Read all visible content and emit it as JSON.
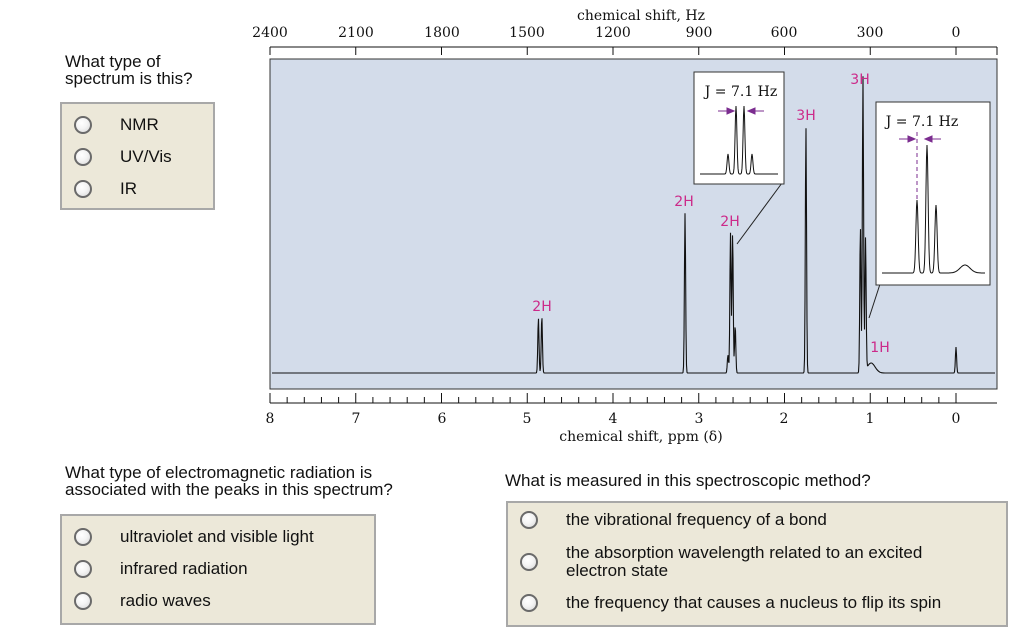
{
  "q1": {
    "question": "What type of\nspectrum is this?",
    "options": [
      "NMR",
      "UV/Vis",
      "IR"
    ]
  },
  "q2": {
    "question": "What type of electromagnetic radiation is\nassociated with the peaks in this spectrum?",
    "options": [
      "ultraviolet and visible light",
      "infrared radiation",
      "radio waves"
    ]
  },
  "q3": {
    "question": "What is measured in this spectroscopic method?",
    "options": [
      "the vibrational frequency of a bond",
      "the absorption wavelength related to an excited\nelectron state",
      "the frequency that causes a nucleus to flip its spin"
    ]
  },
  "spectrum": {
    "top_axis_title": "chemical shift, Hz",
    "top_ticks": [
      "2400",
      "2100",
      "1800",
      "1500",
      "1200",
      "900",
      "600",
      "300",
      "0"
    ],
    "bottom_axis_title": "chemical shift, ppm (δ)",
    "bottom_ticks": [
      "8",
      "7",
      "6",
      "5",
      "4",
      "3",
      "2",
      "1",
      "0"
    ],
    "peak_labels": [
      "2H",
      "2H",
      "2H",
      "3H",
      "3H",
      "1H"
    ],
    "inset_left_label": "J = 7.1 Hz",
    "inset_right_label": "J = 7.1 Hz",
    "colors": {
      "plot_bg": "#d3dcea",
      "label_magenta": "#cc2a8a",
      "arrow_purple": "#7b2c8f"
    }
  }
}
